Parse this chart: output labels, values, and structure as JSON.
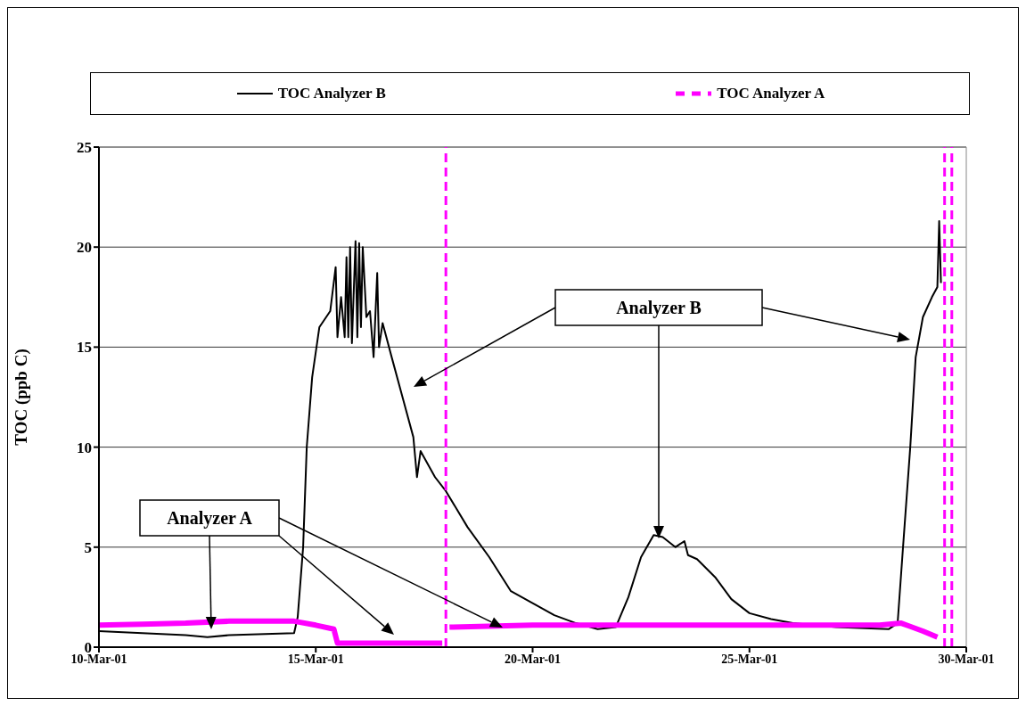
{
  "chart_data": {
    "type": "line",
    "ylabel": "TOC (ppb C)",
    "xlim": [
      "--03-10",
      "--03-30"
    ],
    "xticks": [
      {
        "value": "--03-10",
        "label": "10-Mar-01"
      },
      {
        "value": "--03-15",
        "label": "15-Mar-01"
      },
      {
        "value": "--03-20",
        "label": "20-Mar-01"
      },
      {
        "value": "--03-25",
        "label": "25-Mar-01"
      },
      {
        "value": "--03-30",
        "label": "30-Mar-01"
      }
    ],
    "ylim": [
      0,
      25
    ],
    "yticks": [
      0,
      5,
      10,
      15,
      20,
      25
    ],
    "grid": "y",
    "legend": "top",
    "marker": "none",
    "series": [
      {
        "name": "TOC Analyzer B",
        "color": "#000000",
        "line_style": "solid",
        "x": [
          "--03-10T00:00",
          "--03-11T00:00",
          "--03-12T00:00",
          "--03-12T12:00",
          "--03-13T00:00",
          "--03-14T12:00",
          "--03-14T14:00",
          "--03-14T17:00",
          "--03-14T19:00",
          "--03-14T22:00",
          "--03-15T02:00",
          "--03-15T08:00",
          "--03-15T11:00",
          "--03-15T12:00",
          "--03-15T14:00",
          "--03-15T16:00",
          "--03-15T17:00",
          "--03-15T18:00",
          "--03-15T19:00",
          "--03-15T20:00",
          "--03-15T22:00",
          "--03-15T23:00",
          "--03-16T00:00",
          "--03-16T01:00",
          "--03-16T02:00",
          "--03-16T04:00",
          "--03-16T06:00",
          "--03-16T08:00",
          "--03-16T10:00",
          "--03-16T11:00",
          "--03-16T13:00",
          "--03-16T18:00",
          "--03-17T00:00",
          "--03-17T06:00",
          "--03-17T08:00",
          "--03-17T10:00",
          "--03-17T18:00",
          "--03-18T00:00",
          "--03-18T12:00",
          "--03-19T00:00",
          "--03-19T12:00",
          "--03-20T00:00",
          "--03-20T12:00",
          "--03-21T00:00",
          "--03-21T12:00",
          "--03-21T22:00",
          "--03-22T05:00",
          "--03-22T12:00",
          "--03-22T19:00",
          "--03-23T00:00",
          "--03-23T07:00",
          "--03-23T12:00",
          "--03-23T14:00",
          "--03-23T19:00",
          "--03-24T05:00",
          "--03-24T14:00",
          "--03-25T00:00",
          "--03-25T12:00",
          "--03-26T00:00",
          "--03-27T00:00",
          "--03-28T05:00",
          "--03-28T10:00",
          "--03-28T13:00",
          "--03-28T17:00",
          "--03-28T20:00",
          "--03-29T00:00",
          "--03-29T05:00",
          "--03-29T08:00",
          "--03-29T09:00",
          "--03-29T10:00"
        ],
        "values": [
          0.8,
          0.7,
          0.6,
          0.5,
          0.6,
          0.7,
          1.5,
          5,
          10,
          13.5,
          16,
          16.8,
          19,
          15.5,
          17.5,
          15.5,
          19.5,
          15.5,
          20,
          15.2,
          20.3,
          15.5,
          20.2,
          16,
          20,
          16.5,
          16.8,
          14.5,
          18.7,
          15,
          16.2,
          14.5,
          12.5,
          10.5,
          8.5,
          9.8,
          8.5,
          7.8,
          6,
          4.5,
          2.8,
          2.2,
          1.6,
          1.2,
          0.9,
          1,
          2.5,
          4.5,
          5.6,
          5.5,
          5,
          5.3,
          4.6,
          4.4,
          3.5,
          2.4,
          1.7,
          1.4,
          1.2,
          1,
          0.9,
          1.2,
          5,
          10,
          14.5,
          16.5,
          17.5,
          18,
          21.3,
          18.2
        ]
      },
      {
        "name": "TOC Analyzer A",
        "color": "#ff00ff",
        "line_style": "solid",
        "x": [
          "--03-10T00:00",
          "--03-11T00:00",
          "--03-12T00:00",
          "--03-13T00:00",
          "--03-14T00:00",
          "--03-14T12:00",
          "--03-15T00:00",
          "--03-15T10:00",
          "--03-15T12:00",
          "--03-16T00:00",
          "--03-17T00:00",
          "--03-17T22:00",
          "--03-18T00:00",
          "--03-18T02:00",
          "--03-20T00:00",
          "--03-22T00:00",
          "--03-24T00:00",
          "--03-26T00:00",
          "--03-28T00:00",
          "--03-28T12:00",
          "--03-29T00:00",
          "--03-29T08:00"
        ],
        "values": [
          1.1,
          1.15,
          1.2,
          1.3,
          1.3,
          1.3,
          1.1,
          0.9,
          0.2,
          0.2,
          0.2,
          0.2,
          null,
          1,
          1.1,
          1.1,
          1.1,
          1.1,
          1.1,
          1.2,
          0.8,
          0.5
        ]
      }
    ],
    "ref_lines": [
      {
        "axis": "x",
        "value": "--03-18T00:00",
        "color": "#ff00ff",
        "line_style": "dashed"
      },
      {
        "axis": "x",
        "value": "--03-29T12:00",
        "color": "#ff00ff",
        "line_style": "dashed"
      },
      {
        "axis": "x",
        "value": "--03-29T16:00",
        "color": "#ff00ff",
        "line_style": "dashed"
      }
    ],
    "annotations": [
      "Analyzer B",
      "Analyzer A"
    ]
  }
}
